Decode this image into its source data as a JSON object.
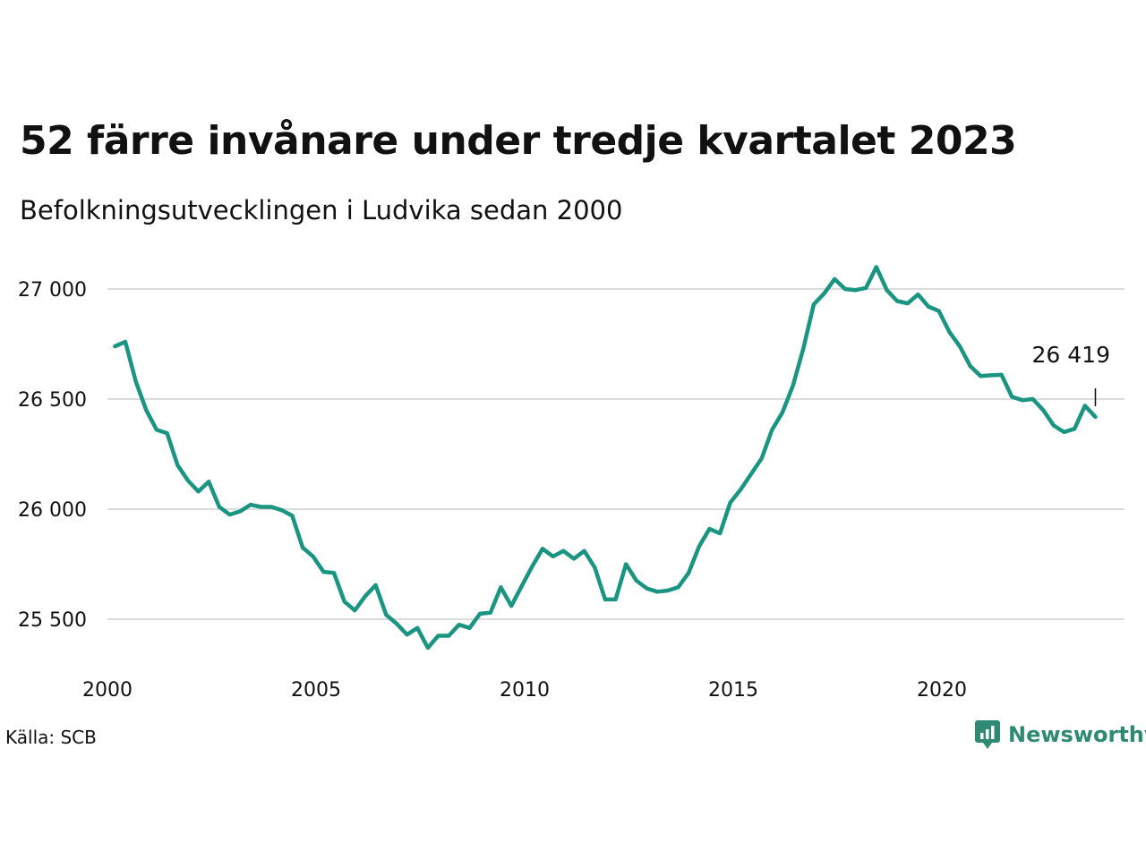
{
  "colors": {
    "line": "#1a9582",
    "grid": "#dcdcdc",
    "brand": "#2f8a74"
  },
  "source": "Källa: SCB",
  "brand": {
    "name": "Newsworthy",
    "icon": "newsworthy-logo-icon"
  },
  "chart_data": {
    "type": "line",
    "title": "52 färre invånare under tredje kvartalet 2023",
    "subtitle": "Befolkningsutvecklingen i Ludvika sedan 2000",
    "xlabel": "",
    "ylabel": "",
    "x_ticks": [
      "2000",
      "2005",
      "2010",
      "2015",
      "2020"
    ],
    "y_ticks": [
      {
        "value": 25500,
        "label": "25 500"
      },
      {
        "value": 26000,
        "label": "26 000"
      },
      {
        "value": 26500,
        "label": "26 500"
      },
      {
        "value": 27000,
        "label": "27 000"
      }
    ],
    "xlim": [
      2000.0,
      2025.0
    ],
    "ylim": [
      25250,
      27250
    ],
    "grid": true,
    "annotation": {
      "label": "26 419",
      "x": 2023.5,
      "y": 26419
    },
    "series": [
      {
        "x_start": 2000.0,
        "step": 0.25,
        "values": [
          26740,
          26760,
          26580,
          26450,
          26360,
          26345,
          26200,
          26130,
          26080,
          26125,
          26010,
          25975,
          25990,
          26020,
          26010,
          26010,
          25995,
          25970,
          25825,
          25785,
          25715,
          25710,
          25580,
          25540,
          25605,
          25655,
          25520,
          25480,
          25430,
          25460,
          25370,
          25425,
          25425,
          25475,
          25460,
          25525,
          25530,
          25645,
          25560,
          25650,
          25740,
          25820,
          25785,
          25810,
          25775,
          25810,
          25735,
          25590,
          25590,
          25750,
          25675,
          25640,
          25625,
          25630,
          25645,
          25710,
          25830,
          25910,
          25890,
          26030,
          26090,
          26160,
          26230,
          26360,
          26440,
          26560,
          26730,
          26930,
          26980,
          27045,
          27000,
          26995,
          27005,
          27100,
          26995,
          26945,
          26935,
          26975,
          26920,
          26900,
          26805,
          26740,
          26650,
          26605,
          26608,
          26610,
          26510,
          26495,
          26500,
          26450,
          26380,
          26350,
          26365,
          26470,
          26419
        ]
      }
    ]
  }
}
